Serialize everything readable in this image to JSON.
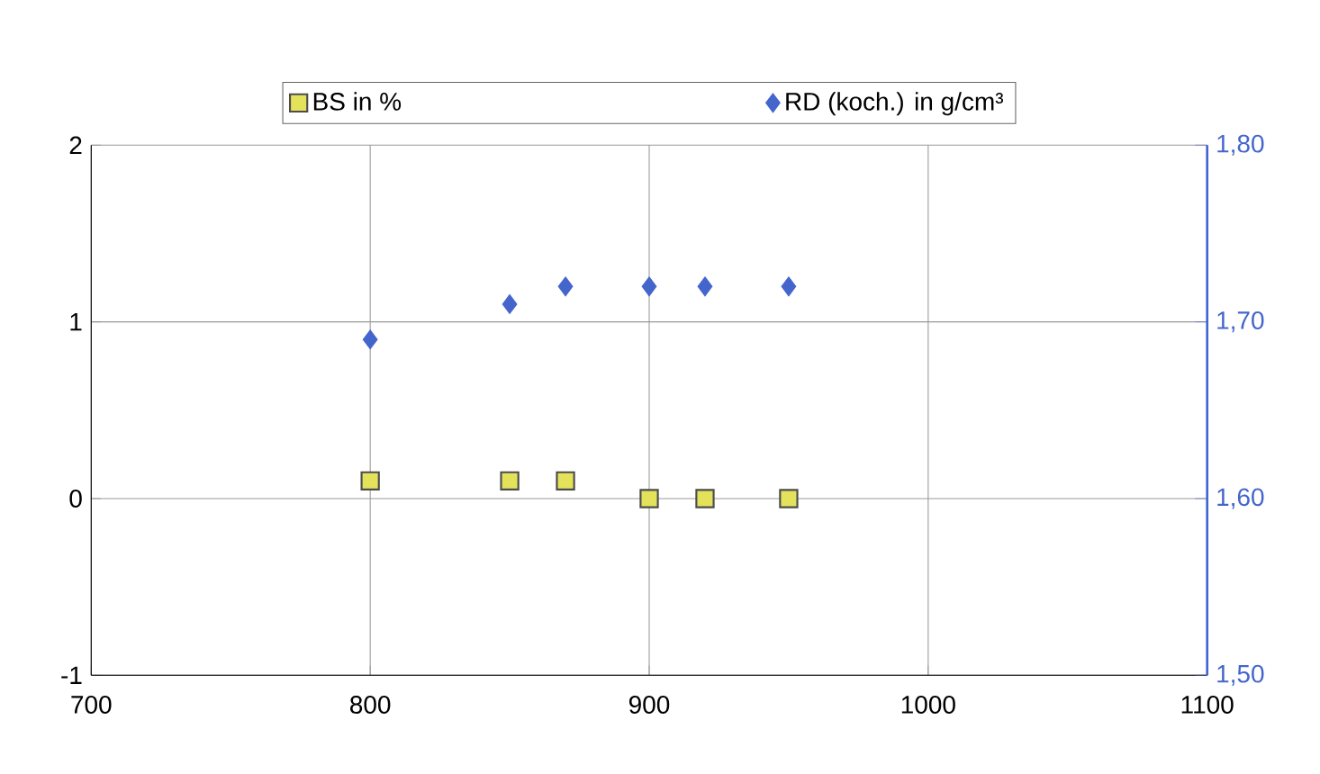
{
  "chart_data": {
    "type": "scatter",
    "x": [
      800,
      850,
      870,
      900,
      920,
      950
    ],
    "series": [
      {
        "name": "BS in %",
        "color": "#e4e25a",
        "marker": "square",
        "values": [
          0.1,
          0.1,
          0.1,
          0,
          0,
          0
        ]
      },
      {
        "name": "RD (koch.) in g/cm³",
        "color": "#4466cc",
        "marker": "diamond",
        "axis": "y2",
        "values": [
          1.69,
          1.71,
          1.72,
          1.72,
          1.72,
          1.72
        ]
      }
    ],
    "xlim": [
      700,
      1100
    ],
    "xticks": [
      700,
      800,
      900,
      1000,
      1100
    ],
    "ylim": [
      -1,
      2
    ],
    "yticks": [
      -1,
      0,
      1,
      2
    ],
    "y2lim": [
      1.5,
      1.8
    ],
    "y2ticks": [
      {
        "value": 1.5,
        "label": "1,50"
      },
      {
        "value": 1.6,
        "label": "1,60"
      },
      {
        "value": 1.7,
        "label": "1,70"
      },
      {
        "value": 1.8,
        "label": "1,80"
      }
    ],
    "grid": true,
    "legend": "top"
  }
}
